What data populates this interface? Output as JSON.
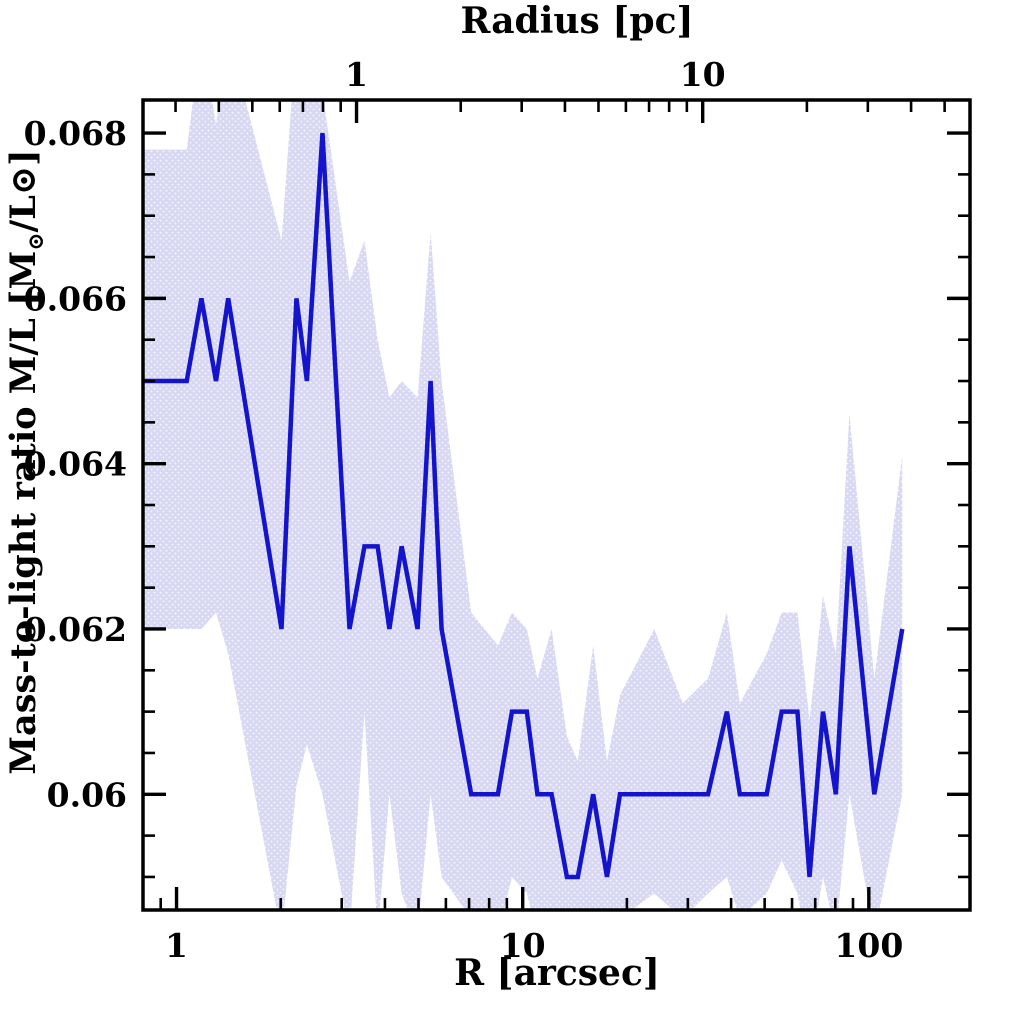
{
  "chart_data": {
    "type": "line",
    "title_top_axis": "Radius [pc]",
    "xlabel": "R [arcsec]",
    "ylabel": "Mass-to-light ratio M/L [M⊙/L⊙]",
    "ylabel_parts": {
      "prefix": "Mass-to-light ratio M/L [M",
      "sub": "⊙",
      "suffix": "/L⊙]"
    },
    "x_scale": "log",
    "x_range_arcsec": [
      0.8,
      196
    ],
    "y_range": [
      0.0586,
      0.0684
    ],
    "pc_per_arcsec": 0.302,
    "grid": "off",
    "legend": "none",
    "x_major_ticks_arcsec": [
      1,
      10,
      100
    ],
    "x_major_tick_labels": [
      "1",
      "10",
      "100"
    ],
    "x_minor_ticks_arcsec": [
      0.9,
      2,
      3,
      4,
      5,
      6,
      7,
      8,
      9,
      20,
      30,
      40,
      50,
      60,
      70,
      80,
      90
    ],
    "top_major_ticks_pc": [
      1,
      10
    ],
    "top_major_tick_labels": [
      "1",
      "10"
    ],
    "top_minor_ticks_pc": [
      0.3,
      0.4,
      0.5,
      0.6,
      0.7,
      0.8,
      0.9,
      2,
      3,
      4,
      5,
      6,
      7,
      8,
      9,
      20,
      30,
      40,
      50
    ],
    "y_major_ticks": [
      0.068,
      0.066,
      0.064,
      0.062,
      0.06
    ],
    "y_major_tick_labels": [
      "0.068",
      "0.066",
      "0.064",
      "0.062",
      "0.06"
    ],
    "y_minor_step": 0.0005,
    "series": [
      {
        "name": "mass-to-light-ratio-profile",
        "x_arcsec": [
          0.8,
          1.07,
          1.18,
          1.3,
          1.41,
          2.01,
          2.22,
          2.38,
          2.64,
          3.16,
          3.49,
          3.81,
          4.12,
          4.47,
          4.97,
          5.42,
          5.83,
          7.1,
          8.48,
          9.31,
          10.28,
          11.03,
          12.12,
          13.42,
          14.43,
          15.98,
          17.52,
          19.1,
          24.0,
          29.0,
          34.3,
          38.9,
          42.4,
          50.7,
          56.0,
          62.2,
          67.4,
          73.7,
          80.3,
          87.9,
          103.7,
          124.9
        ],
        "y": [
          0.065,
          0.065,
          0.066,
          0.065,
          0.066,
          0.062,
          0.066,
          0.065,
          0.068,
          0.062,
          0.063,
          0.063,
          0.062,
          0.063,
          0.062,
          0.065,
          0.062,
          0.06,
          0.06,
          0.061,
          0.061,
          0.06,
          0.06,
          0.059,
          0.059,
          0.06,
          0.059,
          0.06,
          0.06,
          0.06,
          0.06,
          0.061,
          0.06,
          0.06,
          0.061,
          0.061,
          0.059,
          0.061,
          0.06,
          0.063,
          0.06,
          0.062
        ]
      }
    ],
    "band": {
      "name": "uncertainty-band",
      "x_arcsec": [
        0.8,
        1.07,
        1.18,
        1.3,
        1.41,
        2.01,
        2.22,
        2.38,
        2.64,
        3.16,
        3.49,
        3.81,
        4.12,
        4.47,
        4.97,
        5.42,
        5.83,
        7.1,
        8.48,
        9.31,
        10.28,
        11.03,
        12.12,
        13.42,
        14.43,
        15.98,
        17.52,
        19.1,
        24.0,
        29.0,
        34.3,
        38.9,
        42.4,
        50.7,
        56.0,
        62.2,
        67.4,
        73.7,
        80.3,
        87.9,
        103.7,
        124.9
      ],
      "lo": [
        0.062,
        0.062,
        0.062,
        0.0622,
        0.0617,
        0.0583,
        0.0601,
        0.0606,
        0.06,
        0.0583,
        0.061,
        0.0583,
        0.06,
        0.0588,
        0.0583,
        0.06,
        0.059,
        0.0585,
        0.0583,
        0.059,
        0.0588,
        0.0583,
        0.0585,
        0.058,
        0.0583,
        0.0585,
        0.058,
        0.0585,
        0.0588,
        0.0585,
        0.0588,
        0.059,
        0.0585,
        0.0588,
        0.0592,
        0.0588,
        0.058,
        0.059,
        0.0583,
        0.06,
        0.0583,
        0.06
      ],
      "hi": [
        0.0678,
        0.0678,
        0.0692,
        0.0681,
        0.0692,
        0.0667,
        0.0692,
        0.0692,
        0.0685,
        0.0662,
        0.0667,
        0.0655,
        0.0648,
        0.065,
        0.0648,
        0.0668,
        0.065,
        0.0622,
        0.0618,
        0.0622,
        0.062,
        0.0614,
        0.062,
        0.0607,
        0.0604,
        0.0618,
        0.0604,
        0.0612,
        0.062,
        0.0611,
        0.0614,
        0.0622,
        0.0611,
        0.0617,
        0.0622,
        0.0622,
        0.0609,
        0.0624,
        0.0617,
        0.0646,
        0.0614,
        0.0641
      ],
      "style": "stippled"
    },
    "colors": {
      "line": "#1414cc",
      "band": "#d8d8f3",
      "band_stipple": "#ffffff",
      "axis": "#000000",
      "background": "#ffffff"
    }
  }
}
